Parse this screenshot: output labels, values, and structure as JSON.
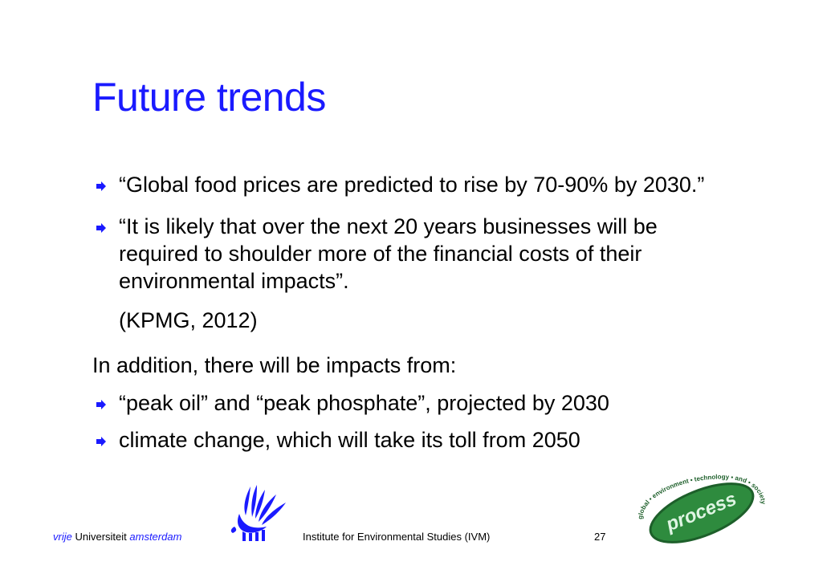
{
  "slide": {
    "title": "Future trends",
    "bullets_top": [
      "“Global food prices are predicted to rise by 70-90% by 2030.”",
      "“It is likely that over the next 20 years businesses will be required to shoulder more of the financial costs of their environmental impacts”."
    ],
    "bullet2_lines": [
      "“It is likely that over the next 20 years businesses will be",
      "required to shoulder more of the financial costs of their",
      "environmental impacts”."
    ],
    "citation": "(KPMG, 2012)",
    "intro": "In addition, there will be impacts from:",
    "bullets_bottom": [
      "“peak oil” and “peak phosphate”, projected by 2030",
      "climate change, which will take its toll from 2050"
    ]
  },
  "footer": {
    "uni_vrije": "vrije",
    "uni_name": "Universiteit",
    "uni_amsterdam": "amsterdam",
    "institute": "Institute for Environmental Studies (IVM)",
    "page_number": "27"
  },
  "logos": {
    "process_text": "process",
    "process_ring": "global • environment • technology • and • society"
  },
  "colors": {
    "title": "#1a1aff",
    "arrow": "#1a1aff",
    "logo_green": "#2e8b3e"
  },
  "icons": [
    "arrow-bullet-icon",
    "griffin-logo-icon",
    "process-logo-icon"
  ]
}
